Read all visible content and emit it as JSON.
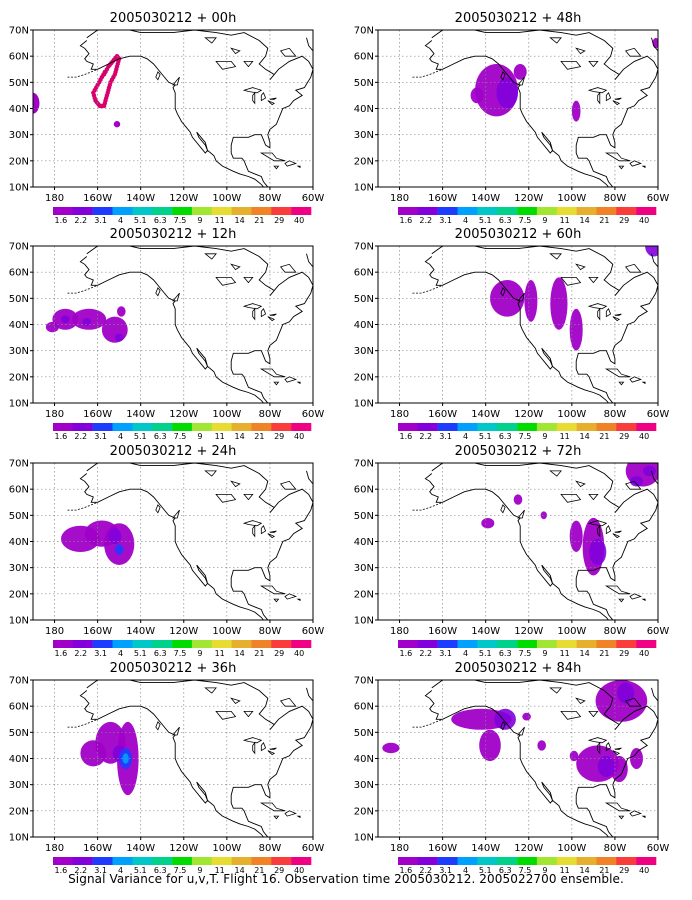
{
  "caption": "Signal Variance for u,v,T. Flight 16. Observation time 2005030212. 2005022700 ensemble.",
  "x_ticks": [
    "180",
    "160W",
    "140W",
    "120W",
    "100W",
    "80W",
    "60W"
  ],
  "y_ticks": [
    "10N",
    "20N",
    "30N",
    "40N",
    "50N",
    "60N",
    "70N"
  ],
  "colorbar_labels": [
    "1.6",
    "2.2",
    "3.1",
    "4",
    "5.1",
    "6.3",
    "7.5",
    "9",
    "11",
    "14",
    "21",
    "29",
    "40"
  ],
  "colors": {
    "levels": [
      "#a000c8",
      "#8200dc",
      "#1e3cff",
      "#00a0ff",
      "#00c8c8",
      "#00d28c",
      "#00dc00",
      "#a0e632",
      "#e6dc32",
      "#e6af2d",
      "#f08228",
      "#fa3c3c",
      "#f00082"
    ]
  },
  "panels": [
    {
      "title": "2005030212 + 00h"
    },
    {
      "title": "2005030212 + 12h"
    },
    {
      "title": "2005030212 + 24h"
    },
    {
      "title": "2005030212 + 36h"
    },
    {
      "title": "2005030212 + 48h"
    },
    {
      "title": "2005030212 + 60h"
    },
    {
      "title": "2005030212 + 72h"
    },
    {
      "title": "2005030212 + 84h"
    }
  ]
}
